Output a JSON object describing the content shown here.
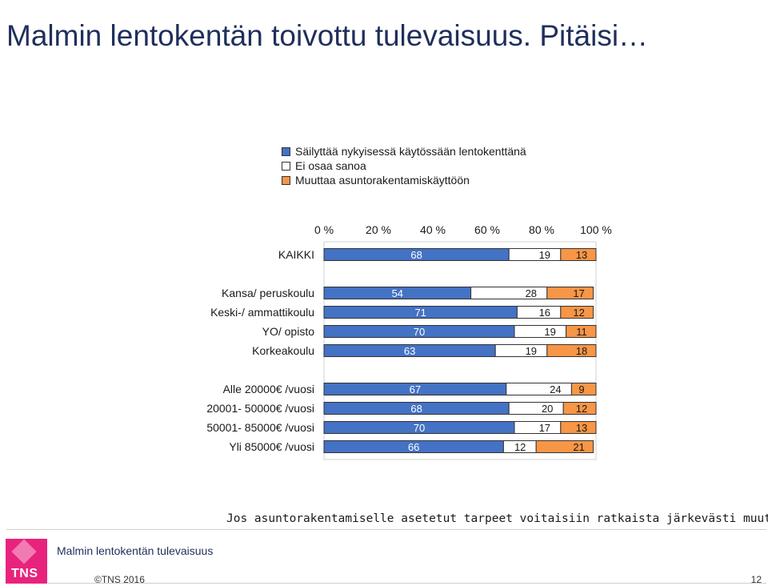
{
  "page": {
    "title": "Malmin lentokentän toivottu tulevaisuus. Pitäisi…",
    "note": "Jos asuntorakentamiselle asetetut tarpeet voitaisiin ratkaista järkevästi muuten",
    "footer_name": "Malmin lentokentän tulevaisuus",
    "copyright": "©TNS 2016",
    "page_number": "12",
    "logo_text": "TNS"
  },
  "chart_data": {
    "type": "bar",
    "orientation": "horizontal-stacked-100",
    "title": "Malmin lentokentän toivottu tulevaisuus. Pitäisi…",
    "ticks": [
      "0 %",
      "20 %",
      "40 %",
      "60 %",
      "80 %",
      "100 %"
    ],
    "xlim": [
      0,
      100
    ],
    "legend_position": "top",
    "categories": [
      "KAIKKI",
      "Kansa/ peruskoulu",
      "Keski-/ ammattikoulu",
      "YO/ opisto",
      "Korkeakoulu",
      "Alle 20000€ /vuosi",
      "20001- 50000€ /vuosi",
      "50001- 85000€ /vuosi",
      "Yli 85000€ /vuosi"
    ],
    "series": [
      {
        "name": "Säilyttää nykyisessä käytössään lentokenttänä",
        "color": "#4472c4",
        "values": [
          68,
          54,
          71,
          70,
          63,
          67,
          68,
          70,
          66
        ]
      },
      {
        "name": "Ei osaa sanoa",
        "color": "#ffffff",
        "values": [
          19,
          28,
          16,
          19,
          19,
          24,
          20,
          17,
          12
        ]
      },
      {
        "name": "Muuttaa asuntorakentamiskäyttöön",
        "color": "#f79646",
        "values": [
          13,
          17,
          12,
          11,
          18,
          9,
          12,
          13,
          21
        ]
      }
    ]
  }
}
